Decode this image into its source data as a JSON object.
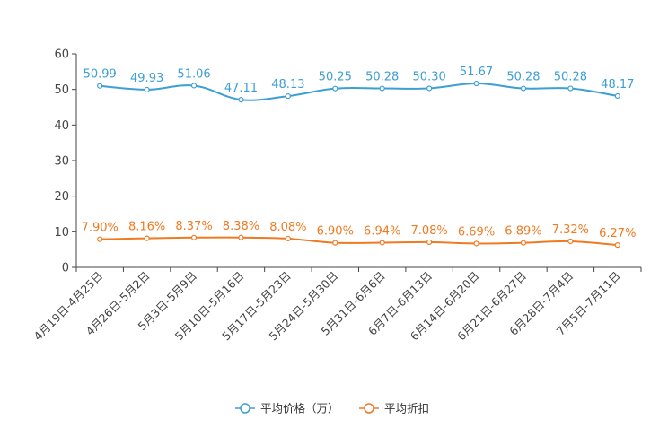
{
  "chart_data": {
    "type": "line",
    "categories": [
      "4月19日-4月25日",
      "4月26日-5月2日",
      "5月3日-5月9日",
      "5月10日-5月16日",
      "5月17日-5月23日",
      "5月24日-5月30日",
      "5月31日-6月6日",
      "6月7日-6月13日",
      "6月14日-6月20日",
      "6月21日-6月27日",
      "6月28日-7月4日",
      "7月5日-7月11日"
    ],
    "ylim": [
      0,
      60
    ],
    "yticks": [
      0,
      10,
      20,
      30,
      40,
      50,
      60
    ],
    "grid": false,
    "legend_position": "bottom-center",
    "series": [
      {
        "name": "平均价格（万）",
        "color": "#3d9fd3",
        "values": [
          50.99,
          49.93,
          51.06,
          47.11,
          48.13,
          50.25,
          50.28,
          50.3,
          51.67,
          50.28,
          50.28,
          48.17
        ],
        "labels": [
          "50.99",
          "49.93",
          "51.06",
          "47.11",
          "48.13",
          "50.25",
          "50.28",
          "50.30",
          "51.67",
          "50.28",
          "50.28",
          "48.17"
        ]
      },
      {
        "name": "平均折扣",
        "color": "#f07a22",
        "values": [
          7.9,
          8.16,
          8.37,
          8.38,
          8.08,
          6.9,
          6.94,
          7.08,
          6.69,
          6.89,
          7.32,
          6.27
        ],
        "labels": [
          "7.90%",
          "8.16%",
          "8.37%",
          "8.38%",
          "8.08%",
          "6.90%",
          "6.94%",
          "7.08%",
          "6.69%",
          "6.89%",
          "7.32%",
          "6.27%"
        ]
      }
    ]
  }
}
